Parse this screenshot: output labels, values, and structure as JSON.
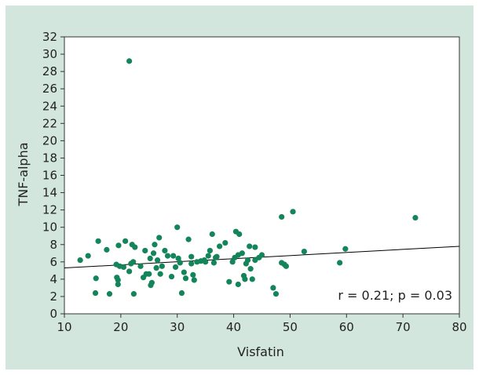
{
  "chart_data": {
    "type": "scatter",
    "xlabel": "Visfatin",
    "ylabel": "TNF-alpha",
    "xlim": [
      10,
      80
    ],
    "ylim": [
      0,
      32
    ],
    "x_ticks": [
      10,
      20,
      30,
      40,
      50,
      60,
      70,
      80
    ],
    "y_ticks": [
      0,
      2,
      4,
      6,
      8,
      10,
      12,
      14,
      16,
      18,
      20,
      22,
      24,
      26,
      28,
      30,
      32
    ],
    "grid": false,
    "annotation": "r = 0.21; p = 0.03",
    "point_color": "#14855a",
    "line_color": "#000000",
    "regression_line": {
      "x": [
        10,
        80
      ],
      "y": [
        5.3,
        7.8
      ]
    },
    "points": [
      [
        12.8,
        6.2
      ],
      [
        14.2,
        6.7
      ],
      [
        15.5,
        2.4
      ],
      [
        15.6,
        4.1
      ],
      [
        16.0,
        8.4
      ],
      [
        17.5,
        7.4
      ],
      [
        18.0,
        2.3
      ],
      [
        19.2,
        5.7
      ],
      [
        19.3,
        4.2
      ],
      [
        19.5,
        3.4
      ],
      [
        19.5,
        3.9
      ],
      [
        19.8,
        5.5
      ],
      [
        19.6,
        7.9
      ],
      [
        20.5,
        5.4
      ],
      [
        20.8,
        8.4
      ],
      [
        21.5,
        4.9
      ],
      [
        21.5,
        29.2
      ],
      [
        21.8,
        5.8
      ],
      [
        22.0,
        8.0
      ],
      [
        22.3,
        2.3
      ],
      [
        22.2,
        6.0
      ],
      [
        22.5,
        7.7
      ],
      [
        23.5,
        5.5
      ],
      [
        24.0,
        4.2
      ],
      [
        24.3,
        7.3
      ],
      [
        24.5,
        4.6
      ],
      [
        25.0,
        4.6
      ],
      [
        25.2,
        6.4
      ],
      [
        25.3,
        3.3
      ],
      [
        25.5,
        3.6
      ],
      [
        25.8,
        7.0
      ],
      [
        26.0,
        8.0
      ],
      [
        26.3,
        5.3
      ],
      [
        26.5,
        6.2
      ],
      [
        26.8,
        8.8
      ],
      [
        27.0,
        4.6
      ],
      [
        27.3,
        5.5
      ],
      [
        27.8,
        7.3
      ],
      [
        28.3,
        6.7
      ],
      [
        29.0,
        4.3
      ],
      [
        29.3,
        6.7
      ],
      [
        29.7,
        5.4
      ],
      [
        30.0,
        10.0
      ],
      [
        30.2,
        6.4
      ],
      [
        30.5,
        5.9
      ],
      [
        30.8,
        2.4
      ],
      [
        31.2,
        4.8
      ],
      [
        31.5,
        4.1
      ],
      [
        32.0,
        8.6
      ],
      [
        32.5,
        6.6
      ],
      [
        32.5,
        5.8
      ],
      [
        32.8,
        4.5
      ],
      [
        33.0,
        3.9
      ],
      [
        33.5,
        6.0
      ],
      [
        34.2,
        6.1
      ],
      [
        34.8,
        6.2
      ],
      [
        35.0,
        6.0
      ],
      [
        35.5,
        6.7
      ],
      [
        35.8,
        7.3
      ],
      [
        36.2,
        9.2
      ],
      [
        36.5,
        5.9
      ],
      [
        36.8,
        6.5
      ],
      [
        37.0,
        6.6
      ],
      [
        37.5,
        7.8
      ],
      [
        38.5,
        8.2
      ],
      [
        39.2,
        3.7
      ],
      [
        39.8,
        6.0
      ],
      [
        40.2,
        6.5
      ],
      [
        40.4,
        9.5
      ],
      [
        40.8,
        6.8
      ],
      [
        40.8,
        3.4
      ],
      [
        41.0,
        9.2
      ],
      [
        41.5,
        7.0
      ],
      [
        41.8,
        4.4
      ],
      [
        42.0,
        4.0
      ],
      [
        42.2,
        5.8
      ],
      [
        42.5,
        6.2
      ],
      [
        42.8,
        7.8
      ],
      [
        43.0,
        5.2
      ],
      [
        43.3,
        4.0
      ],
      [
        43.8,
        7.7
      ],
      [
        43.8,
        6.2
      ],
      [
        44.5,
        6.5
      ],
      [
        45.0,
        6.8
      ],
      [
        47.0,
        3.0
      ],
      [
        47.5,
        2.3
      ],
      [
        48.5,
        11.2
      ],
      [
        48.5,
        5.9
      ],
      [
        49.0,
        5.7
      ],
      [
        49.3,
        5.5
      ],
      [
        50.5,
        11.8
      ],
      [
        52.5,
        7.2
      ],
      [
        58.8,
        5.9
      ],
      [
        59.8,
        7.5
      ],
      [
        72.2,
        11.1
      ]
    ]
  }
}
